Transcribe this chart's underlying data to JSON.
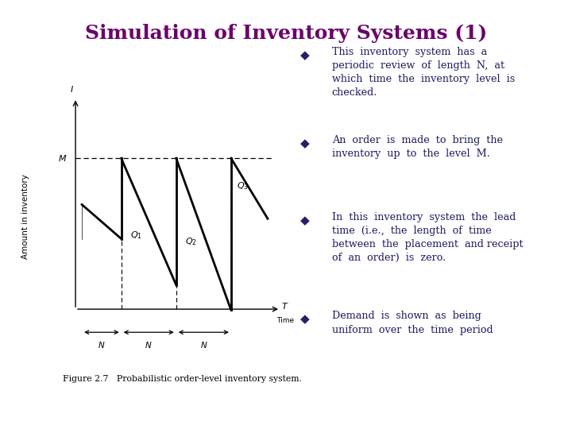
{
  "title": "Simulation of Inventory Systems (1)",
  "title_color": "#6B006B",
  "title_fontsize": 18,
  "bg_color": "#ffffff",
  "bullet_color": "#2d1b69",
  "bullet_text_color": "#1a1a5e",
  "bullet_fontsize": 9.2,
  "bullets": [
    "This  inventory  system  has  a\nperiodic  review  of  length  N,  at\nwhich  time  the  inventory  level  is\nchecked.",
    "An  order  is  made  to  bring  the\ninventory  up  to  the  level  M.",
    "In  this  inventory  system  the  lead\ntime  (i.e.,  the  length  of  time\nbetween  the  placement  and receipt\nof  an  order)  is  zero.",
    "Demand  is  shown  as  being\nuniform  over  the  time  period"
  ],
  "figure_caption": "Figure 2.7   Probabilistic order-level inventory system.",
  "axis_label_y": "Amount in inventory"
}
